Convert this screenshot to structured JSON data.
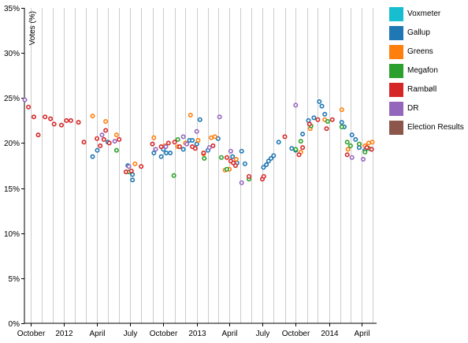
{
  "chart_data": {
    "type": "scatter",
    "title": "",
    "xlabel": "",
    "ylabel": "Votes (%)",
    "ylim": [
      0,
      35
    ],
    "xlim": [
      "2011-09-14",
      "2014-05-12"
    ],
    "y_ticks": [
      "0%",
      "5%",
      "10%",
      "15%",
      "20%",
      "25%",
      "30%",
      "35%"
    ],
    "x_ticks": [
      {
        "date": "2011-10-01",
        "label": "October"
      },
      {
        "date": "2012-01-01",
        "label": "2012"
      },
      {
        "date": "2012-04-01",
        "label": "April"
      },
      {
        "date": "2012-07-01",
        "label": "July"
      },
      {
        "date": "2012-10-01",
        "label": "October"
      },
      {
        "date": "2013-01-01",
        "label": "2013"
      },
      {
        "date": "2013-04-01",
        "label": "April"
      },
      {
        "date": "2013-07-01",
        "label": "July"
      },
      {
        "date": "2013-10-01",
        "label": "October"
      },
      {
        "date": "2014-01-01",
        "label": "2014"
      },
      {
        "date": "2014-04-01",
        "label": "April"
      }
    ],
    "grid": "vertical-monthly",
    "legend_position": "right",
    "series": [
      {
        "name": "Voxmeter",
        "color": "#17becf",
        "points": []
      },
      {
        "name": "Gallup",
        "color": "#1f77b4",
        "points": [
          [
            "2012-03-20",
            18.5
          ],
          [
            "2012-04-02",
            19.2
          ],
          [
            "2012-05-01",
            20.1
          ],
          [
            "2012-06-25",
            17.5
          ],
          [
            "2012-07-08",
            15.9
          ],
          [
            "2012-07-08",
            16.5
          ],
          [
            "2012-09-05",
            18.9
          ],
          [
            "2012-09-25",
            18.5
          ],
          [
            "2012-10-01",
            19.3
          ],
          [
            "2012-10-09",
            18.9
          ],
          [
            "2012-10-20",
            18.9
          ],
          [
            "2012-11-25",
            19.3
          ],
          [
            "2012-12-12",
            20.3
          ],
          [
            "2012-12-20",
            20.3
          ],
          [
            "2013-01-01",
            19.9
          ],
          [
            "2013-01-10",
            22.6
          ],
          [
            "2013-02-01",
            19.2
          ],
          [
            "2013-03-01",
            20.5
          ],
          [
            "2013-04-10",
            18.5
          ],
          [
            "2013-04-22",
            17.8
          ],
          [
            "2013-05-05",
            19.1
          ],
          [
            "2013-05-14",
            17.7
          ],
          [
            "2013-07-04",
            17.3
          ],
          [
            "2013-07-12",
            17.6
          ],
          [
            "2013-07-18",
            18.0
          ],
          [
            "2013-07-25",
            18.3
          ],
          [
            "2013-08-01",
            18.6
          ],
          [
            "2013-08-15",
            20.1
          ],
          [
            "2013-09-20",
            19.4
          ],
          [
            "2013-10-01",
            19.2
          ],
          [
            "2013-10-20",
            21.0
          ],
          [
            "2013-11-05",
            22.5
          ],
          [
            "2013-11-20",
            22.8
          ],
          [
            "2013-12-05",
            24.6
          ],
          [
            "2013-12-12",
            24.1
          ],
          [
            "2013-12-20",
            23.2
          ],
          [
            "2014-02-05",
            22.3
          ],
          [
            "2014-02-12",
            21.8
          ],
          [
            "2014-03-05",
            20.9
          ],
          [
            "2014-03-15",
            20.4
          ],
          [
            "2014-03-25",
            19.5
          ],
          [
            "2014-04-10",
            19.2
          ],
          [
            "2014-04-28",
            19.3
          ]
        ]
      },
      {
        "name": "Greens",
        "color": "#ff7f0e",
        "points": [
          [
            "2012-03-20",
            23.0
          ],
          [
            "2012-04-25",
            22.4
          ],
          [
            "2012-05-25",
            20.9
          ],
          [
            "2012-07-15",
            17.7
          ],
          [
            "2012-09-05",
            20.6
          ],
          [
            "2012-10-05",
            19.7
          ],
          [
            "2012-11-10",
            19.6
          ],
          [
            "2012-12-01",
            20.0
          ],
          [
            "2012-12-15",
            23.1
          ],
          [
            "2013-01-05",
            20.3
          ],
          [
            "2013-01-20",
            18.8
          ],
          [
            "2013-02-10",
            20.6
          ],
          [
            "2013-02-20",
            20.7
          ],
          [
            "2013-03-20",
            17.0
          ],
          [
            "2013-04-01",
            17.1
          ],
          [
            "2013-04-20",
            18.2
          ],
          [
            "2013-10-15",
            19.0
          ],
          [
            "2013-11-10",
            21.6
          ],
          [
            "2013-12-20",
            22.6
          ],
          [
            "2014-02-05",
            23.7
          ],
          [
            "2014-02-22",
            19.3
          ],
          [
            "2014-04-10",
            19.7
          ],
          [
            "2014-04-20",
            20.0
          ],
          [
            "2014-04-30",
            20.1
          ]
        ]
      },
      {
        "name": "Megafon",
        "color": "#2ca02c",
        "points": [
          [
            "2012-05-25",
            19.2
          ],
          [
            "2012-06-28",
            16.8
          ],
          [
            "2012-10-30",
            16.4
          ],
          [
            "2012-11-10",
            20.4
          ],
          [
            "2013-01-22",
            18.3
          ],
          [
            "2013-03-10",
            18.4
          ],
          [
            "2013-03-25",
            17.1
          ],
          [
            "2013-05-25",
            16.0
          ],
          [
            "2013-10-01",
            19.3
          ],
          [
            "2013-10-15",
            20.2
          ],
          [
            "2013-11-12",
            21.9
          ],
          [
            "2013-12-28",
            22.4
          ],
          [
            "2014-02-05",
            21.8
          ],
          [
            "2014-02-20",
            20.1
          ],
          [
            "2014-03-01",
            19.7
          ],
          [
            "2014-03-25",
            19.9
          ],
          [
            "2014-04-10",
            19.0
          ],
          [
            "2014-04-20",
            19.4
          ]
        ]
      },
      {
        "name": "Rambøll",
        "color": "#d62728",
        "points": [
          [
            "2011-09-25",
            24.0
          ],
          [
            "2011-10-10",
            22.9
          ],
          [
            "2011-10-22",
            20.9
          ],
          [
            "2011-11-10",
            22.9
          ],
          [
            "2011-11-25",
            22.7
          ],
          [
            "2011-12-05",
            22.1
          ],
          [
            "2011-12-25",
            22.0
          ],
          [
            "2012-01-08",
            22.5
          ],
          [
            "2012-01-20",
            22.5
          ],
          [
            "2012-02-10",
            22.3
          ],
          [
            "2012-02-25",
            20.1
          ],
          [
            "2012-04-01",
            20.5
          ],
          [
            "2012-04-10",
            19.7
          ],
          [
            "2012-04-20",
            20.4
          ],
          [
            "2012-04-25",
            21.4
          ],
          [
            "2012-05-05",
            20.0
          ],
          [
            "2012-06-01",
            20.4
          ],
          [
            "2012-06-20",
            16.8
          ],
          [
            "2012-07-05",
            16.9
          ],
          [
            "2012-08-01",
            17.4
          ],
          [
            "2012-09-01",
            19.9
          ],
          [
            "2012-09-25",
            19.6
          ],
          [
            "2012-10-15",
            20.0
          ],
          [
            "2012-11-01",
            20.1
          ],
          [
            "2012-11-15",
            19.6
          ],
          [
            "2012-12-20",
            19.6
          ],
          [
            "2012-12-28",
            19.4
          ],
          [
            "2013-01-20",
            18.9
          ],
          [
            "2013-02-15",
            19.7
          ],
          [
            "2013-03-25",
            18.4
          ],
          [
            "2013-04-05",
            18.0
          ],
          [
            "2013-04-12",
            17.8
          ],
          [
            "2013-04-18",
            17.5
          ],
          [
            "2013-05-25",
            16.3
          ],
          [
            "2013-07-01",
            16.0
          ],
          [
            "2013-07-05",
            16.3
          ],
          [
            "2013-09-01",
            20.7
          ],
          [
            "2013-10-10",
            18.7
          ],
          [
            "2013-10-20",
            19.5
          ],
          [
            "2013-11-08",
            22.1
          ],
          [
            "2013-12-01",
            22.6
          ],
          [
            "2013-12-25",
            21.6
          ],
          [
            "2014-01-10",
            22.6
          ],
          [
            "2014-02-20",
            18.7
          ],
          [
            "2014-04-15",
            19.5
          ],
          [
            "2014-04-28",
            19.3
          ]
        ]
      },
      {
        "name": "DR",
        "color": "#9467bd",
        "points": [
          [
            "2011-09-15",
            24.8
          ],
          [
            "2012-04-15",
            20.9
          ],
          [
            "2012-05-20",
            20.2
          ],
          [
            "2012-06-28",
            17.4
          ],
          [
            "2012-09-10",
            19.3
          ],
          [
            "2012-10-08",
            19.6
          ],
          [
            "2012-11-25",
            20.7
          ],
          [
            "2012-12-05",
            19.9
          ],
          [
            "2013-01-01",
            21.3
          ],
          [
            "2013-02-05",
            19.5
          ],
          [
            "2013-03-05",
            22.9
          ],
          [
            "2013-04-05",
            19.1
          ],
          [
            "2013-05-05",
            15.6
          ],
          [
            "2013-10-01",
            24.2
          ],
          [
            "2014-03-05",
            18.4
          ],
          [
            "2014-04-05",
            18.2
          ]
        ]
      },
      {
        "name": "Election Results",
        "color": "#8c564b",
        "points": []
      }
    ]
  }
}
